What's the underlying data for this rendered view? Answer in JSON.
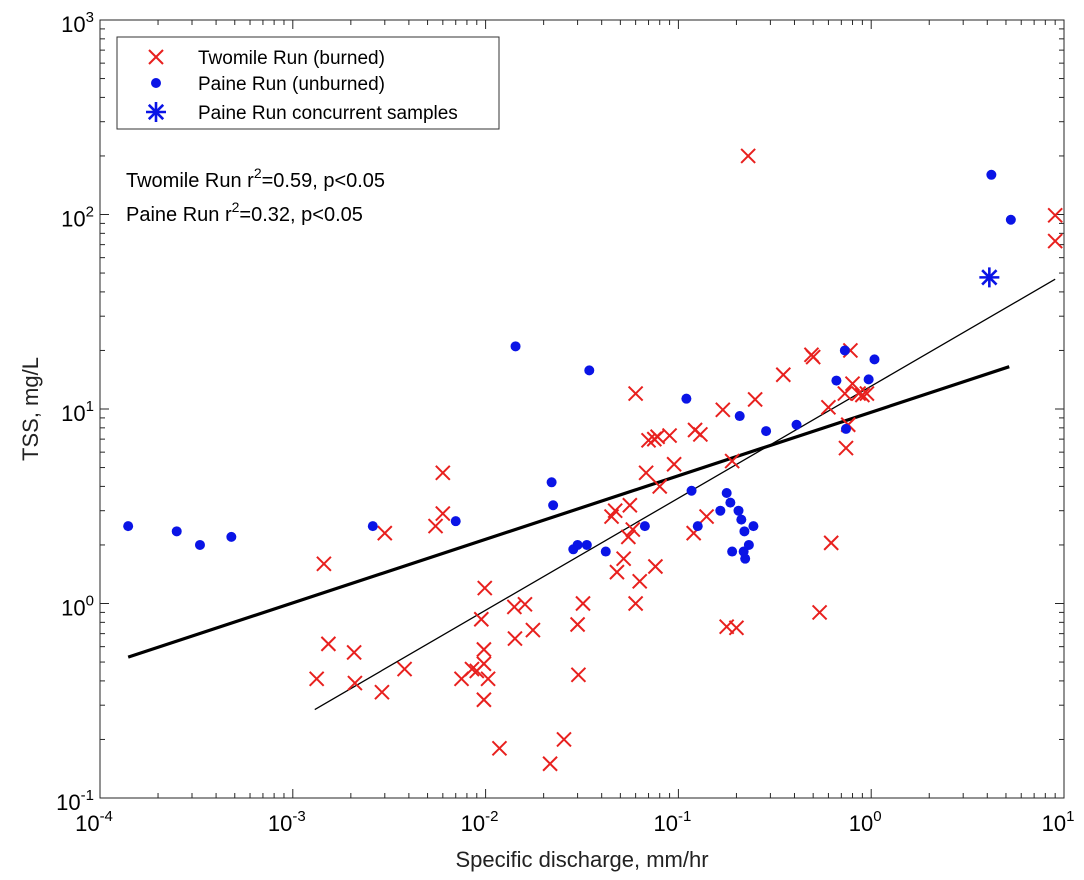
{
  "chart_data": {
    "type": "scatter",
    "x_scale": "log",
    "y_scale": "log",
    "xlim": [
      0.0001,
      10
    ],
    "ylim": [
      0.1,
      1000
    ],
    "xlabel": "Specific discharge, mm/hr",
    "ylabel": "TSS, mg/L",
    "x_ticks": [
      {
        "base": "10",
        "exp": "-4",
        "value": 0.0001
      },
      {
        "base": "10",
        "exp": "-3",
        "value": 0.001
      },
      {
        "base": "10",
        "exp": "-2",
        "value": 0.01
      },
      {
        "base": "10",
        "exp": "-1",
        "value": 0.1
      },
      {
        "base": "10",
        "exp": "0",
        "value": 1
      },
      {
        "base": "10",
        "exp": "1",
        "value": 10
      }
    ],
    "y_ticks": [
      {
        "base": "10",
        "exp": "-1",
        "value": 0.1
      },
      {
        "base": "10",
        "exp": "0",
        "value": 1
      },
      {
        "base": "10",
        "exp": "1",
        "value": 10
      },
      {
        "base": "10",
        "exp": "2",
        "value": 100
      },
      {
        "base": "10",
        "exp": "3",
        "value": 1000
      }
    ],
    "legend_position": "top-left",
    "series": [
      {
        "name": "Twomile Run (burned)",
        "marker": "x",
        "color": "#e8201e",
        "points": [
          [
            0.00133,
            0.41
          ],
          [
            0.00145,
            1.6
          ],
          [
            0.00153,
            0.62
          ],
          [
            0.00208,
            0.56
          ],
          [
            0.0021,
            0.39
          ],
          [
            0.0029,
            0.35
          ],
          [
            0.003,
            2.3
          ],
          [
            0.0038,
            0.46
          ],
          [
            0.0055,
            2.5
          ],
          [
            0.006,
            4.7
          ],
          [
            0.006,
            2.9
          ],
          [
            0.0075,
            0.41
          ],
          [
            0.0085,
            0.46
          ],
          [
            0.009,
            0.45
          ],
          [
            0.0095,
            0.83
          ],
          [
            0.0098,
            0.58
          ],
          [
            0.0098,
            0.32
          ],
          [
            0.0098,
            0.49
          ],
          [
            0.0099,
            1.2
          ],
          [
            0.0103,
            0.41
          ],
          [
            0.0118,
            0.18
          ],
          [
            0.0141,
            0.96
          ],
          [
            0.0142,
            0.66
          ],
          [
            0.016,
            0.99
          ],
          [
            0.0176,
            0.73
          ],
          [
            0.0216,
            0.15
          ],
          [
            0.0255,
            0.2
          ],
          [
            0.03,
            0.78
          ],
          [
            0.0303,
            0.43
          ],
          [
            0.032,
            1.0
          ],
          [
            0.045,
            2.8
          ],
          [
            0.047,
            3.0
          ],
          [
            0.048,
            1.45
          ],
          [
            0.052,
            1.7
          ],
          [
            0.055,
            2.2
          ],
          [
            0.056,
            3.2
          ],
          [
            0.058,
            2.4
          ],
          [
            0.06,
            12.0
          ],
          [
            0.06,
            1.0
          ],
          [
            0.063,
            1.3
          ],
          [
            0.068,
            4.7
          ],
          [
            0.07,
            6.9
          ],
          [
            0.075,
            7.0
          ],
          [
            0.076,
            1.55
          ],
          [
            0.078,
            7.2
          ],
          [
            0.08,
            4.0
          ],
          [
            0.09,
            7.3
          ],
          [
            0.095,
            5.2
          ],
          [
            0.12,
            2.3
          ],
          [
            0.122,
            7.8
          ],
          [
            0.13,
            7.4
          ],
          [
            0.14,
            2.8
          ],
          [
            0.17,
            9.9
          ],
          [
            0.178,
            0.76
          ],
          [
            0.19,
            5.4
          ],
          [
            0.2,
            0.75
          ],
          [
            0.23,
            200
          ],
          [
            0.25,
            11.2
          ],
          [
            0.35,
            15
          ],
          [
            0.49,
            19.0
          ],
          [
            0.5,
            18.5
          ],
          [
            0.54,
            0.9
          ],
          [
            0.6,
            10.2
          ],
          [
            0.62,
            2.05
          ],
          [
            0.73,
            12.0
          ],
          [
            0.74,
            6.3
          ],
          [
            0.76,
            8.3
          ],
          [
            0.78,
            20.0
          ],
          [
            0.8,
            13.5
          ],
          [
            0.86,
            12.0
          ],
          [
            0.9,
            11.8
          ],
          [
            0.95,
            12.0
          ],
          [
            9.0,
            99
          ],
          [
            9.0,
            73
          ]
        ]
      },
      {
        "name": "Paine Run (unburned)",
        "marker": "dot",
        "color": "#0a14e6",
        "points": [
          [
            0.00014,
            2.5
          ],
          [
            0.00025,
            2.35
          ],
          [
            0.00033,
            2.0
          ],
          [
            0.00048,
            2.2
          ],
          [
            0.0026,
            2.5
          ],
          [
            0.007,
            2.65
          ],
          [
            0.0143,
            21.0
          ],
          [
            0.022,
            4.2
          ],
          [
            0.0224,
            3.2
          ],
          [
            0.0285,
            1.9
          ],
          [
            0.03,
            2.0
          ],
          [
            0.0335,
            2.0
          ],
          [
            0.0345,
            15.8
          ],
          [
            0.042,
            1.85
          ],
          [
            0.067,
            2.5
          ],
          [
            0.11,
            11.3
          ],
          [
            0.117,
            3.8
          ],
          [
            0.126,
            2.5
          ],
          [
            0.165,
            3.0
          ],
          [
            0.178,
            3.7
          ],
          [
            0.186,
            3.3
          ],
          [
            0.19,
            1.85
          ],
          [
            0.205,
            3.0
          ],
          [
            0.208,
            9.2
          ],
          [
            0.212,
            2.7
          ],
          [
            0.218,
            1.85
          ],
          [
            0.22,
            2.35
          ],
          [
            0.222,
            1.7
          ],
          [
            0.232,
            2.0
          ],
          [
            0.245,
            2.5
          ],
          [
            0.285,
            7.7
          ],
          [
            0.41,
            8.3
          ],
          [
            0.66,
            14.0
          ],
          [
            0.73,
            20.0
          ],
          [
            0.74,
            7.9
          ],
          [
            0.97,
            14.2
          ],
          [
            1.04,
            18.0
          ],
          [
            4.2,
            160
          ],
          [
            5.3,
            94
          ]
        ]
      },
      {
        "name": "Paine Run concurrent samples",
        "marker": "asterisk",
        "color": "#0a14e6",
        "points": [
          [
            4.1,
            47.5
          ]
        ]
      }
    ],
    "fit_lines": [
      {
        "label": "Twomile Run",
        "color": "#000000",
        "width": "thin",
        "x": [
          0.0013,
          9.0
        ],
        "y": [
          0.285,
          46.5
        ]
      },
      {
        "label": "Paine Run",
        "color": "#000000",
        "width": "thick",
        "x": [
          0.00014,
          5.2
        ],
        "y": [
          0.53,
          16.5
        ]
      }
    ],
    "annotations": [
      {
        "id": "twomile",
        "prefix": "Twomile Run r",
        "sup": "2",
        "suffix": "=0.59, p<0.05"
      },
      {
        "id": "paine",
        "prefix": "Paine Run r",
        "sup": "2",
        "suffix": "=0.32, p<0.05"
      }
    ]
  }
}
